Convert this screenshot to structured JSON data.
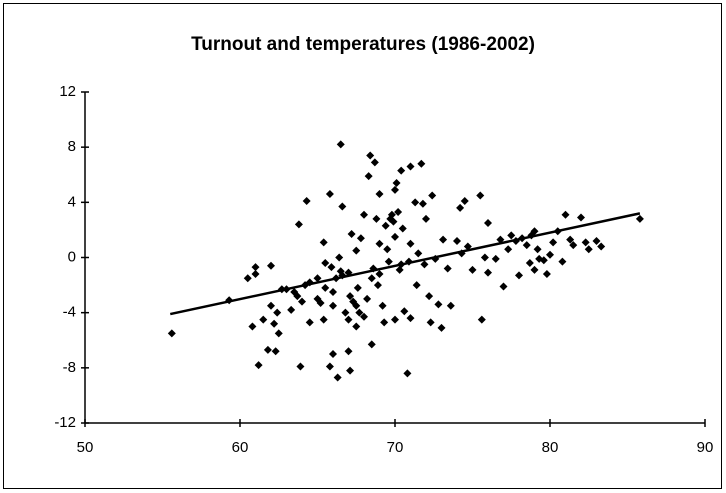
{
  "chart_data": {
    "type": "scatter",
    "title": "Turnout and temperatures (1986-2002)",
    "x": [
      55.6,
      59.3,
      60.5,
      61,
      62,
      61,
      60.8,
      61.5,
      61.2,
      61.8,
      62.3,
      62,
      62.2,
      62.5,
      62.4,
      62.7,
      63,
      63.5,
      63.3,
      63.7,
      64,
      63.9,
      64.2,
      63.8,
      64.3,
      64.5,
      64.5,
      65,
      65,
      65.2,
      65.4,
      65.4,
      65.5,
      65.5,
      65.8,
      65.9,
      66,
      65.8,
      66,
      66,
      66.2,
      66.5,
      66.3,
      66.4,
      66.5,
      66.6,
      66.6,
      66.8,
      67,
      67,
      67.1,
      67.2,
      67.3,
      67.5,
      67.5,
      67.6,
      67.1,
      67,
      67.5,
      67.7,
      67.8,
      68,
      68,
      68.2,
      68.3,
      68.4,
      68.5,
      68.5,
      68.6,
      68.7,
      68.8,
      68.9,
      69,
      69,
      69,
      69.2,
      69.3,
      69.4,
      69.5,
      69.6,
      69.7,
      69.8,
      69.9,
      70,
      70,
      70,
      70.1,
      70.2,
      70.3,
      70.4,
      70.4,
      70.5,
      70.6,
      70.8,
      70.9,
      71,
      71,
      71,
      71.3,
      71.4,
      71.5,
      71.7,
      71.8,
      71.9,
      72,
      72.2,
      72.3,
      72.4,
      72.6,
      72.8,
      73,
      73.1,
      73.4,
      73.6,
      74,
      74.2,
      74.3,
      74.5,
      74.7,
      75,
      75.5,
      75.6,
      75.8,
      76,
      76,
      76.5,
      76.8,
      77,
      77.3,
      77.5,
      77.8,
      78,
      78.2,
      78.5,
      78.7,
      78.8,
      79,
      79,
      79.2,
      79.3,
      79.6,
      79.8,
      80,
      80.2,
      80.5,
      80.8,
      81,
      81.3,
      81.5,
      82,
      82.3,
      82.5,
      83,
      83.3,
      85.8
    ],
    "values": [
      -5.5,
      -3.1,
      -1.5,
      -0.7,
      -0.6,
      -1.2,
      -5,
      -4.5,
      -7.8,
      -6.7,
      -6.8,
      -3.5,
      -4.8,
      -5.5,
      -4,
      -2.3,
      -2.3,
      -2.5,
      -3.8,
      -2.8,
      -3.2,
      -7.9,
      -2,
      2.4,
      4.1,
      -1.8,
      -4.7,
      -3,
      -1.5,
      -3.3,
      -4.5,
      1.1,
      -0.4,
      -2.2,
      4.6,
      -0.7,
      -7,
      -7.9,
      -2.5,
      -3.5,
      -1.5,
      8.2,
      -8.7,
      0,
      -1,
      3.7,
      -1.3,
      -4,
      -4.5,
      -1.1,
      -2.8,
      1.7,
      -3.2,
      0.5,
      -3.5,
      -2.2,
      -8.2,
      -6.8,
      -5,
      -4,
      1.4,
      3.1,
      -4.3,
      -3,
      5.9,
      7.4,
      -6.3,
      -1.5,
      -0.8,
      6.9,
      2.8,
      -2,
      1,
      4.6,
      -1.2,
      -3.5,
      -4.7,
      2.3,
      0.6,
      -0.3,
      2.8,
      3.1,
      2.6,
      -4.5,
      1.5,
      4.9,
      5.4,
      3.3,
      -0.9,
      -0.5,
      6.3,
      2.1,
      -3.9,
      -8.4,
      -0.3,
      6.6,
      1,
      -4.4,
      4,
      -2,
      0.3,
      6.8,
      3.9,
      -0.5,
      2.8,
      -2.8,
      -4.7,
      4.5,
      -0.1,
      -3.4,
      -5.1,
      1.3,
      -0.8,
      -3.5,
      1.2,
      3.6,
      0.3,
      4.1,
      0.8,
      -0.9,
      4.5,
      -4.5,
      0,
      2.5,
      -1.1,
      -0.1,
      1.3,
      -2.1,
      0.6,
      1.6,
      1.2,
      -1.3,
      1.4,
      0.9,
      -0.4,
      1.6,
      1.9,
      -0.9,
      0.6,
      -0.1,
      -0.2,
      -1.2,
      0.2,
      1.1,
      1.9,
      -0.3,
      3.1,
      1.3,
      0.9,
      2.9,
      1.1,
      0.6,
      1.2,
      0.8,
      2.8
    ],
    "color": "#000000",
    "trendline": {
      "x": [
        55.5,
        85.8
      ],
      "values": [
        -4.1,
        3.2
      ],
      "color": "#000000"
    },
    "xlim": [
      50,
      90
    ],
    "xticks": [
      50,
      60,
      70,
      80,
      90
    ],
    "ylim": [
      -12,
      12
    ],
    "yticks": [
      12,
      8,
      4,
      0,
      -4,
      -8,
      -12
    ],
    "grid": false
  }
}
